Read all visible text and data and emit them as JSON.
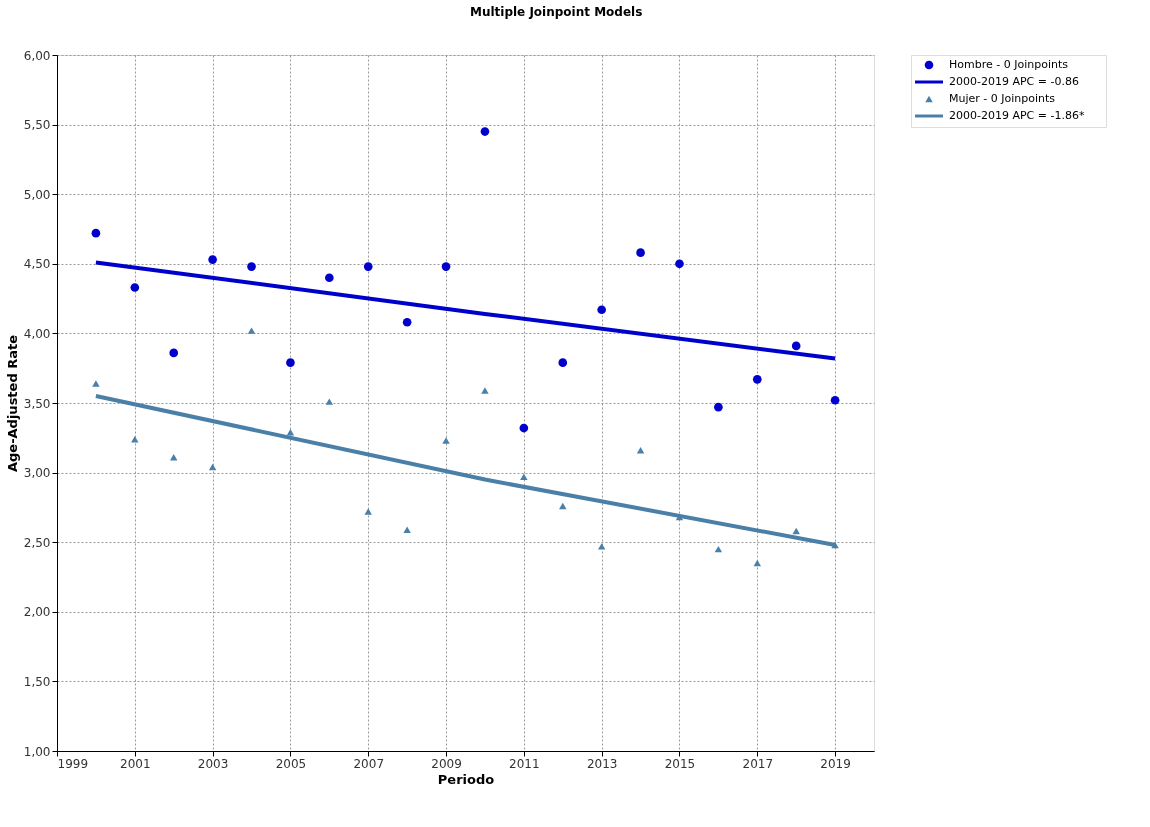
{
  "chart_data": {
    "type": "scatter",
    "title": "Multiple Joinpoint Models",
    "xlabel": "Periodo",
    "ylabel": "Age-Adjusted Rate",
    "xlim": [
      1999,
      2020
    ],
    "xticks": [
      1999,
      2001,
      2003,
      2005,
      2007,
      2009,
      2011,
      2013,
      2015,
      2017,
      2019
    ],
    "ylim": [
      1,
      6
    ],
    "yticks": [
      {
        "value": 1,
        "label": "1,00"
      },
      {
        "value": 1.5,
        "label": "1,50"
      },
      {
        "value": 2,
        "label": "2,00"
      },
      {
        "value": 2.5,
        "label": "2,50"
      },
      {
        "value": 3,
        "label": "3,00"
      },
      {
        "value": 3.5,
        "label": "3,50"
      },
      {
        "value": 4,
        "label": "4,00"
      },
      {
        "value": 4.5,
        "label": "4,50"
      },
      {
        "value": 5,
        "label": "5,00"
      },
      {
        "value": 5.5,
        "label": "5,50"
      },
      {
        "value": 6,
        "label": "6,00"
      }
    ],
    "grid": true,
    "legend": "right",
    "series": [
      {
        "name": "Hombre - 0 Joinpoints",
        "marker": "circle",
        "color": "#0000cc",
        "x": [
          2000,
          2001,
          2002,
          2003,
          2004,
          2005,
          2006,
          2007,
          2008,
          2009,
          2010,
          2011,
          2012,
          2013,
          2014,
          2015,
          2016,
          2017,
          2018,
          2019
        ],
        "values": [
          4.72,
          4.33,
          3.86,
          4.53,
          4.48,
          3.79,
          4.4,
          4.48,
          4.08,
          4.48,
          5.45,
          3.32,
          3.79,
          4.17,
          4.58,
          4.5,
          3.47,
          3.67,
          3.91,
          3.52
        ]
      },
      {
        "name": "2000-2019 APC  = -0.86",
        "type": "line",
        "line_style": "solid",
        "color": "#0000cc",
        "x": [
          2000,
          2010,
          2019
        ],
        "values": [
          4.51,
          4.14,
          3.82
        ]
      },
      {
        "name": "Mujer - 0 Joinpoints",
        "marker": "triangle",
        "color": "#4a7fa8",
        "x": [
          2000,
          2001,
          2002,
          2003,
          2004,
          2005,
          2006,
          2007,
          2008,
          2009,
          2010,
          2011,
          2012,
          2013,
          2014,
          2015,
          2016,
          2017,
          2018,
          2019
        ],
        "values": [
          3.64,
          3.24,
          3.11,
          3.04,
          4.02,
          3.29,
          3.51,
          2.72,
          2.59,
          3.23,
          3.59,
          2.97,
          2.76,
          2.47,
          3.16,
          2.68,
          2.45,
          2.35,
          2.58,
          2.48
        ]
      },
      {
        "name": "2000-2019 APC  = -1.86*",
        "type": "line",
        "line_style": "solid",
        "color": "#4a7fa8",
        "x": [
          2000,
          2010,
          2019
        ],
        "values": [
          3.55,
          2.95,
          2.48
        ]
      }
    ]
  }
}
